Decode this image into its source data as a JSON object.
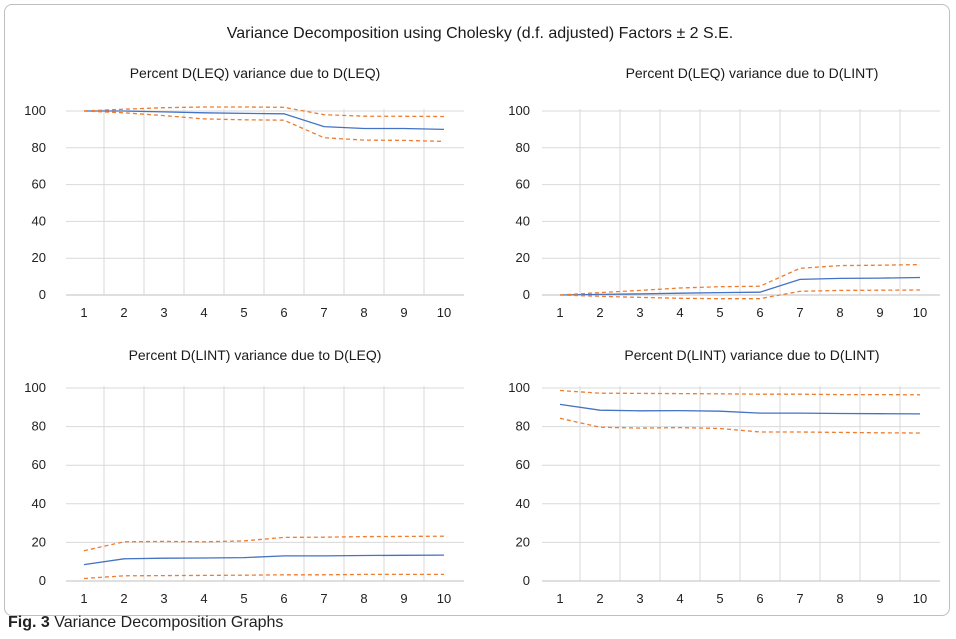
{
  "figure": {
    "main_title": "Variance Decomposition using Cholesky (d.f. adjusted) Factors ± 2 S.E.",
    "caption_label": "Fig. 3",
    "caption_text": "Variance Decomposition Graphs"
  },
  "colors": {
    "main_line": "#4472c4",
    "band_line": "#ed7d31",
    "grid": "#d9d9d9"
  },
  "chart_data": [
    {
      "type": "line",
      "title": "Percent D(LEQ) variance due to D(LEQ)",
      "x": [
        1,
        2,
        3,
        4,
        5,
        6,
        7,
        8,
        9,
        10
      ],
      "ylim": [
        0,
        100
      ],
      "yticks": [
        0,
        20,
        40,
        60,
        80,
        100
      ],
      "grid": true,
      "series": [
        {
          "role": "estimate",
          "style": "solid",
          "values": [
            100,
            100,
            99.5,
            99,
            98.7,
            98.5,
            91.5,
            90.5,
            90.5,
            90
          ]
        },
        {
          "role": "upper",
          "style": "dashed",
          "values": [
            100,
            101,
            101.8,
            102.2,
            102.2,
            102,
            98,
            97.2,
            97.1,
            97
          ]
        },
        {
          "role": "lower",
          "style": "dashed",
          "values": [
            100,
            99,
            97.5,
            95.7,
            95.2,
            95,
            85.5,
            84.2,
            84,
            83.5
          ]
        }
      ]
    },
    {
      "type": "line",
      "title": "Percent D(LEQ) variance due to D(LINT)",
      "x": [
        1,
        2,
        3,
        4,
        5,
        6,
        7,
        8,
        9,
        10
      ],
      "ylim": [
        0,
        100
      ],
      "yticks": [
        0,
        20,
        40,
        60,
        80,
        100
      ],
      "grid": true,
      "series": [
        {
          "role": "estimate",
          "style": "solid",
          "values": [
            0,
            0.3,
            0.6,
            1,
            1.3,
            1.5,
            8.5,
            9,
            9.2,
            9.5
          ]
        },
        {
          "role": "upper",
          "style": "dashed",
          "values": [
            0,
            1.3,
            2.5,
            3.8,
            4.5,
            4.8,
            14.5,
            16,
            16.2,
            16.5
          ]
        },
        {
          "role": "lower",
          "style": "dashed",
          "values": [
            0,
            -0.7,
            -1.3,
            -1.8,
            -2,
            -2,
            2,
            2.5,
            2.6,
            2.7
          ]
        }
      ]
    },
    {
      "type": "line",
      "title": "Percent D(LINT) variance due to D(LEQ)",
      "x": [
        1,
        2,
        3,
        4,
        5,
        6,
        7,
        8,
        9,
        10
      ],
      "ylim": [
        0,
        100
      ],
      "yticks": [
        0,
        20,
        40,
        60,
        80,
        100
      ],
      "grid": true,
      "series": [
        {
          "role": "estimate",
          "style": "solid",
          "values": [
            8.5,
            11.5,
            11.8,
            11.9,
            12.1,
            13,
            13,
            13.2,
            13.3,
            13.4
          ]
        },
        {
          "role": "upper",
          "style": "dashed",
          "values": [
            15.7,
            20.3,
            20.5,
            20.3,
            20.8,
            22.6,
            22.7,
            23,
            23.1,
            23.2
          ]
        },
        {
          "role": "lower",
          "style": "dashed",
          "values": [
            1.3,
            2.7,
            2.8,
            2.9,
            3,
            3.2,
            3.2,
            3.4,
            3.4,
            3.4
          ]
        }
      ]
    },
    {
      "type": "line",
      "title": "Percent D(LINT) variance due to D(LINT)",
      "x": [
        1,
        2,
        3,
        4,
        5,
        6,
        7,
        8,
        9,
        10
      ],
      "ylim": [
        0,
        100
      ],
      "yticks": [
        0,
        20,
        40,
        60,
        80,
        100
      ],
      "grid": true,
      "series": [
        {
          "role": "estimate",
          "style": "solid",
          "values": [
            91.5,
            88.5,
            88.2,
            88.3,
            88,
            87,
            87,
            86.8,
            86.7,
            86.6
          ]
        },
        {
          "role": "upper",
          "style": "dashed",
          "values": [
            98.7,
            97.3,
            97.2,
            97.1,
            97,
            96.8,
            96.8,
            96.6,
            96.6,
            96.5
          ]
        },
        {
          "role": "lower",
          "style": "dashed",
          "values": [
            84.3,
            79.7,
            79.2,
            79.5,
            79,
            77.2,
            77.2,
            77,
            76.8,
            76.7
          ]
        }
      ]
    }
  ]
}
